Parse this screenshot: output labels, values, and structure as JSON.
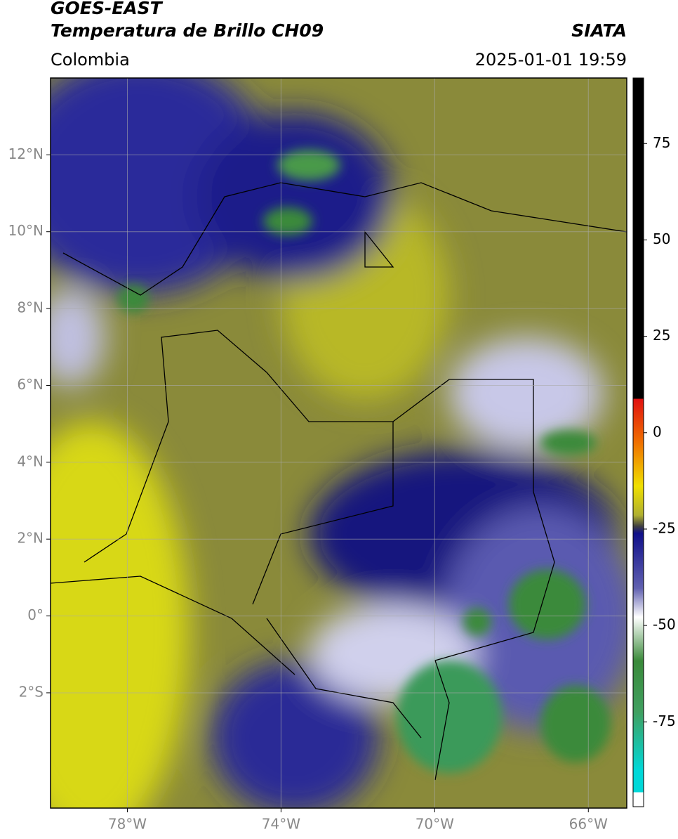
{
  "header": {
    "source": "GOES-EAST",
    "title": "Temperatura de Brillo CH09",
    "agency": "SIATA",
    "region": "Colombia",
    "datetime": "2025-01-01 19:59"
  },
  "map": {
    "xlim": [
      -80,
      -65
    ],
    "ylim": [
      -5,
      14
    ],
    "lon_ticks": [
      {
        "value": -78,
        "label": "78°W"
      },
      {
        "value": -74,
        "label": "74°W"
      },
      {
        "value": -70,
        "label": "70°W"
      },
      {
        "value": -66,
        "label": "66°W"
      }
    ],
    "lat_ticks": [
      {
        "value": 12,
        "label": "12°N"
      },
      {
        "value": 10,
        "label": "10°N"
      },
      {
        "value": 8,
        "label": "8°N"
      },
      {
        "value": 6,
        "label": "6°N"
      },
      {
        "value": 4,
        "label": "4°N"
      },
      {
        "value": 2,
        "label": "2°N"
      },
      {
        "value": 0,
        "label": "0°"
      },
      {
        "value": -2,
        "label": "2°S"
      }
    ]
  },
  "colorbar": {
    "lim": [
      -97,
      92
    ],
    "ticks": [
      75,
      50,
      25,
      0,
      -25,
      -50,
      -75
    ]
  }
}
